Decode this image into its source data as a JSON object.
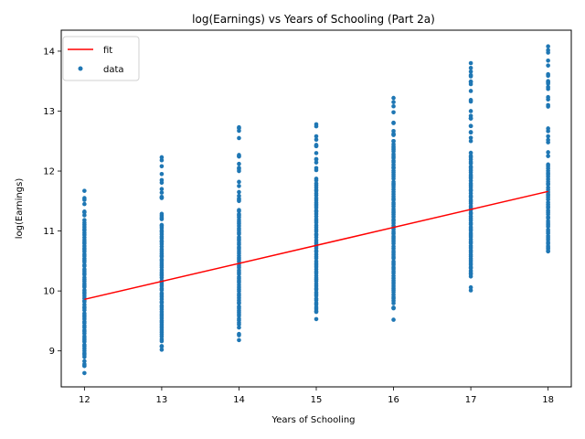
{
  "chart_data": {
    "type": "scatter",
    "title": "log(Earnings) vs Years of Schooling (Part 2a)",
    "xlabel": "Years of Schooling",
    "ylabel": "log(Earnings)",
    "xlim": [
      11.7,
      18.3
    ],
    "ylim": [
      8.4,
      14.35
    ],
    "xticks": [
      12,
      13,
      14,
      15,
      16,
      17,
      18
    ],
    "yticks": [
      9,
      10,
      11,
      12,
      13,
      14
    ],
    "grid": false,
    "legend_position": "top-left",
    "colors": {
      "data": "#1f77b4",
      "fit": "#ff0000"
    },
    "series": [
      {
        "name": "fit",
        "kind": "line",
        "x": [
          12,
          18
        ],
        "y": [
          9.86,
          11.66
        ]
      },
      {
        "name": "data",
        "kind": "scatter",
        "groups": [
          {
            "x": 12,
            "min": 8.63,
            "max": 11.67,
            "dense_min": 8.9,
            "dense_max": 11.2,
            "outliers": [
              8.63,
              8.78,
              8.83,
              11.45,
              11.52,
              11.67
            ]
          },
          {
            "x": 13,
            "min": 9.02,
            "max": 12.23,
            "dense_min": 9.2,
            "dense_max": 11.1,
            "outliers": [
              9.02,
              9.08,
              11.55,
              11.7,
              11.85,
              11.95,
              12.08,
              12.18,
              12.23
            ]
          },
          {
            "x": 14,
            "min": 9.18,
            "max": 12.73,
            "dense_min": 9.4,
            "dense_max": 11.3,
            "outliers": [
              9.18,
              11.5,
              11.65,
              11.82,
              12.0,
              12.12,
              12.25,
              12.55,
              12.73
            ]
          },
          {
            "x": 15,
            "min": 9.53,
            "max": 12.78,
            "dense_min": 9.7,
            "dense_max": 11.9,
            "outliers": [
              9.53,
              12.05,
              12.2,
              12.3,
              12.42,
              12.58,
              12.78
            ]
          },
          {
            "x": 16,
            "min": 9.52,
            "max": 13.22,
            "dense_min": 9.8,
            "dense_max": 12.4,
            "outliers": [
              9.52,
              9.72,
              12.5,
              12.62,
              12.8,
              12.98,
              13.08,
              13.15,
              13.22
            ]
          },
          {
            "x": 17,
            "min": 10.01,
            "max": 13.8,
            "dense_min": 10.3,
            "dense_max": 12.3,
            "outliers": [
              10.01,
              10.06,
              12.5,
              12.65,
              12.75,
              12.88,
              13.0,
              13.45,
              13.58,
              13.72,
              13.8
            ]
          },
          {
            "x": 18,
            "min": 10.66,
            "max": 14.08,
            "dense_min": 10.75,
            "dense_max": 12.05,
            "outliers": [
              10.66,
              10.72,
              12.25,
              12.48,
              12.52,
              12.58,
              13.1,
              13.37,
              13.5,
              13.76,
              14.08
            ]
          }
        ]
      }
    ]
  }
}
